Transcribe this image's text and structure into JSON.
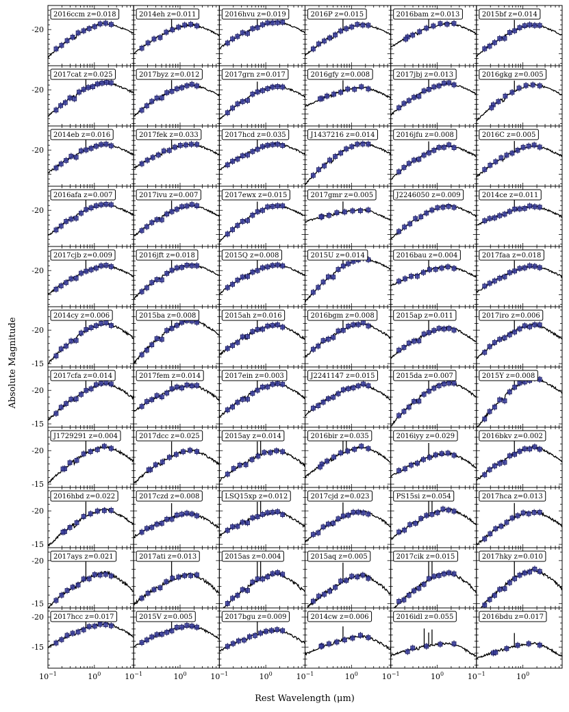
{
  "figure": {
    "xlabel": "Rest Wavelength (μm)",
    "ylabel": "Absolute Magnitude"
  },
  "style": {
    "model_color": "#000000",
    "point_fill": "#3b3fa0",
    "point_edge": "#1a1a5a",
    "frame_color": "#000000"
  },
  "chart_data": {
    "type": "scatter",
    "xscale": "log",
    "yinvert": true,
    "xlim": [
      0.1,
      7
    ],
    "rows": 11,
    "cols": 6,
    "x_ticks": [
      {
        "value": 0.1,
        "base": "10",
        "exp": "−1"
      },
      {
        "value": 1,
        "base": "10",
        "exp": "0"
      }
    ],
    "row_yticks": [
      [
        {
          "value": -20,
          "label": "-20"
        }
      ],
      [
        {
          "value": -20,
          "label": "-20"
        }
      ],
      [
        {
          "value": -20,
          "label": "-20"
        }
      ],
      [
        {
          "value": -20,
          "label": "-20"
        }
      ],
      [
        {
          "value": -20,
          "label": "-20"
        }
      ],
      [
        {
          "value": -20,
          "label": "-20"
        },
        {
          "value": -15,
          "label": "-15"
        }
      ],
      [
        {
          "value": -20,
          "label": "-20"
        },
        {
          "value": -15,
          "label": "-15"
        }
      ],
      [
        {
          "value": -20,
          "label": "-20"
        },
        {
          "value": -15,
          "label": "-15"
        }
      ],
      [
        {
          "value": -20,
          "label": "-20"
        },
        {
          "value": -15,
          "label": "-15"
        }
      ],
      [
        {
          "value": -20,
          "label": "-20"
        },
        {
          "value": -15,
          "label": "-15"
        }
      ],
      [
        {
          "value": -20,
          "label": "-20"
        },
        {
          "value": -15,
          "label": "-15"
        }
      ]
    ],
    "row_ylim": [
      [
        -12.5,
        -25
      ],
      [
        -12.5,
        -25
      ],
      [
        -12.5,
        -25
      ],
      [
        -12.5,
        -25
      ],
      [
        -12.5,
        -25
      ],
      [
        -14.5,
        -23.5
      ],
      [
        -14.5,
        -23.5
      ],
      [
        -14.5,
        -23.5
      ],
      [
        -14.5,
        -23.5
      ],
      [
        -14.5,
        -21.5
      ],
      [
        -11.5,
        -21.5
      ]
    ],
    "panels": [
      {
        "name": "2016ccm z=0.018",
        "peak": -21.3,
        "depth": 7.0,
        "pts": 11,
        "spikes": 0
      },
      {
        "name": "2014eh z=0.011",
        "peak": -21.0,
        "depth": 6.0,
        "pts": 10,
        "spikes": 1
      },
      {
        "name": "2016hvu z=0.019",
        "peak": -21.6,
        "depth": 5.5,
        "pts": 12,
        "spikes": 1
      },
      {
        "name": "2016P z=0.015",
        "peak": -21.1,
        "depth": 6.5,
        "pts": 11,
        "spikes": 1
      },
      {
        "name": "2016bam z=0.013",
        "peak": -21.3,
        "depth": 5.0,
        "pts": 9,
        "spikes": 1
      },
      {
        "name": "2015bf z=0.014",
        "peak": -21.0,
        "depth": 6.5,
        "pts": 12,
        "spikes": 1
      },
      {
        "name": "2017cat z=0.025",
        "peak": -21.5,
        "depth": 7.0,
        "pts": 13,
        "spikes": 1
      },
      {
        "name": "2017byz z=0.012",
        "peak": -21.0,
        "depth": 6.5,
        "pts": 12,
        "spikes": 1
      },
      {
        "name": "2017grn z=0.017",
        "peak": -20.8,
        "depth": 7.0,
        "pts": 12,
        "spikes": 1
      },
      {
        "name": "2016gfy z=0.008",
        "peak": -20.5,
        "depth": 4.0,
        "pts": 9,
        "spikes": 1
      },
      {
        "name": "2017jbj z=0.013",
        "peak": -21.3,
        "depth": 6.5,
        "pts": 12,
        "spikes": 1
      },
      {
        "name": "2016gkg z=0.005",
        "peak": -21.1,
        "depth": 7.5,
        "pts": 9,
        "spikes": 1
      },
      {
        "name": "2014eb z=0.016",
        "peak": -21.2,
        "depth": 6.0,
        "pts": 12,
        "spikes": 1
      },
      {
        "name": "2017fek z=0.033",
        "peak": -21.2,
        "depth": 5.0,
        "pts": 11,
        "spikes": 1
      },
      {
        "name": "2017hcd z=0.035",
        "peak": -21.3,
        "depth": 5.5,
        "pts": 12,
        "spikes": 1
      },
      {
        "name": "J1437216 z=0.014",
        "peak": -21.4,
        "depth": 8.5,
        "pts": 11,
        "spikes": 0
      },
      {
        "name": "2016jfu z=0.008",
        "peak": -20.9,
        "depth": 7.0,
        "pts": 12,
        "spikes": 1
      },
      {
        "name": "2016C z=0.005",
        "peak": -20.9,
        "depth": 6.5,
        "pts": 11,
        "spikes": 1
      },
      {
        "name": "2016afa z=0.007",
        "peak": -21.2,
        "depth": 6.5,
        "pts": 12,
        "spikes": 1
      },
      {
        "name": "2017ivu z=0.007",
        "peak": -21.0,
        "depth": 6.5,
        "pts": 12,
        "spikes": 1
      },
      {
        "name": "2017ewx z=0.015",
        "peak": -21.0,
        "depth": 7.5,
        "pts": 12,
        "spikes": 1
      },
      {
        "name": "2017gmr z=0.005",
        "peak": -20.1,
        "depth": 2.5,
        "pts": 8,
        "spikes": 1
      },
      {
        "name": "J2246050 z=0.009",
        "peak": -21.0,
        "depth": 7.0,
        "pts": 11,
        "spikes": 0
      },
      {
        "name": "2014ce z=0.011",
        "peak": -20.8,
        "depth": 4.0,
        "pts": 12,
        "spikes": 1
      },
      {
        "name": "2017cjb z=0.009",
        "peak": -21.0,
        "depth": 6.0,
        "pts": 12,
        "spikes": 1
      },
      {
        "name": "2016jft z=0.018",
        "peak": -21.2,
        "depth": 7.0,
        "pts": 12,
        "spikes": 1
      },
      {
        "name": "2015Q z=0.008",
        "peak": -21.2,
        "depth": 6.0,
        "pts": 12,
        "spikes": 1
      },
      {
        "name": "2015U z=0.014",
        "peak": -22.5,
        "depth": 9.0,
        "pts": 12,
        "spikes": 1
      },
      {
        "name": "2016bau z=0.004",
        "peak": -20.8,
        "depth": 4.0,
        "pts": 10,
        "spikes": 1
      },
      {
        "name": "2017faa z=0.018",
        "peak": -20.9,
        "depth": 5.5,
        "pts": 12,
        "spikes": 1
      },
      {
        "name": "2014cy z=0.006",
        "peak": -21.0,
        "depth": 6.0,
        "pts": 12,
        "spikes": 1
      },
      {
        "name": "2015ba z=0.008",
        "peak": -21.5,
        "depth": 6.5,
        "pts": 12,
        "spikes": 1
      },
      {
        "name": "2015ah z=0.016",
        "peak": -20.8,
        "depth": 4.5,
        "pts": 12,
        "spikes": 1
      },
      {
        "name": "2016bgm z=0.008",
        "peak": -21.0,
        "depth": 5.0,
        "pts": 12,
        "spikes": 1
      },
      {
        "name": "2015ap z=0.011",
        "peak": -20.4,
        "depth": 4.5,
        "pts": 12,
        "spikes": 1
      },
      {
        "name": "2017iro z=0.006",
        "peak": -20.8,
        "depth": 5.0,
        "pts": 12,
        "spikes": 1
      },
      {
        "name": "2017cfa z=0.014",
        "peak": -21.0,
        "depth": 5.5,
        "pts": 12,
        "spikes": 1
      },
      {
        "name": "2017fem z=0.014",
        "peak": -20.8,
        "depth": 4.0,
        "pts": 12,
        "spikes": 1
      },
      {
        "name": "2017ein z=0.003",
        "peak": -21.0,
        "depth": 5.0,
        "pts": 12,
        "spikes": 1
      },
      {
        "name": "J2241147 z=0.015",
        "peak": -20.8,
        "depth": 4.5,
        "pts": 12,
        "spikes": 0
      },
      {
        "name": "2015da z=0.007",
        "peak": -21.2,
        "depth": 6.5,
        "pts": 12,
        "spikes": 1
      },
      {
        "name": "2015Y z=0.008",
        "peak": -21.8,
        "depth": 7.5,
        "pts": 12,
        "spikes": 1
      },
      {
        "name": "J1729291 z=0.004",
        "peak": -20.6,
        "depth": 5.5,
        "pts": 9,
        "spikes": 1
      },
      {
        "name": "2017dcc z=0.025",
        "peak": -20.1,
        "depth": 5.0,
        "pts": 9,
        "spikes": 1
      },
      {
        "name": "2015ay z=0.014",
        "peak": -20.0,
        "depth": 4.5,
        "pts": 10,
        "spikes": 2
      },
      {
        "name": "2016bir z=0.035",
        "peak": -20.5,
        "depth": 4.5,
        "pts": 9,
        "spikes": 2
      },
      {
        "name": "2016iyy z=0.029",
        "peak": -19.6,
        "depth": 3.5,
        "pts": 10,
        "spikes": 1
      },
      {
        "name": "2016bkv z=0.002",
        "peak": -20.5,
        "depth": 5.0,
        "pts": 12,
        "spikes": 1
      },
      {
        "name": "2016hbd z=0.022",
        "peak": -20.2,
        "depth": 5.5,
        "pts": 9,
        "spikes": 1
      },
      {
        "name": "2017czd z=0.008",
        "peak": -19.6,
        "depth": 3.5,
        "pts": 12,
        "spikes": 1
      },
      {
        "name": "LSQ15xp z=0.012",
        "peak": -19.8,
        "depth": 3.5,
        "pts": 12,
        "spikes": 2
      },
      {
        "name": "2017cjd z=0.023",
        "peak": -19.9,
        "depth": 4.5,
        "pts": 12,
        "spikes": 1
      },
      {
        "name": "PS15si z=0.054",
        "peak": -20.2,
        "depth": 4.5,
        "pts": 11,
        "spikes": 2
      },
      {
        "name": "2017hca z=0.013",
        "peak": -19.9,
        "depth": 5.0,
        "pts": 11,
        "spikes": 1
      },
      {
        "name": "2017ays z=0.021",
        "peak": -18.6,
        "depth": 4.0,
        "pts": 11,
        "spikes": 1
      },
      {
        "name": "2017ati z=0.013",
        "peak": -18.4,
        "depth": 3.5,
        "pts": 10,
        "spikes": 1
      },
      {
        "name": "2015as z=0.004",
        "peak": -18.5,
        "depth": 4.5,
        "pts": 12,
        "spikes": 2
      },
      {
        "name": "2015aq z=0.005",
        "peak": -18.3,
        "depth": 4.0,
        "pts": 11,
        "spikes": 1
      },
      {
        "name": "2017cik z=0.015",
        "peak": -18.6,
        "depth": 4.5,
        "pts": 12,
        "spikes": 2
      },
      {
        "name": "2017hky z=0.010",
        "peak": -18.9,
        "depth": 5.0,
        "pts": 12,
        "spikes": 1
      },
      {
        "name": "2017hcc z=0.017",
        "peak": -18.9,
        "depth": 4.0,
        "pts": 11,
        "spikes": 1
      },
      {
        "name": "2015V z=0.005",
        "peak": -18.5,
        "depth": 3.5,
        "pts": 12,
        "spikes": 1
      },
      {
        "name": "2017bgu z=0.009",
        "peak": -17.8,
        "depth": 3.5,
        "pts": 11,
        "spikes": 1
      },
      {
        "name": "2014cw z=0.006",
        "peak": -16.8,
        "depth": 3.0,
        "pts": 8,
        "spikes": 1
      },
      {
        "name": "2016idl z=0.055",
        "peak": -15.6,
        "depth": 2.0,
        "pts": 5,
        "spikes": 3
      },
      {
        "name": "2016bdu z=0.017",
        "peak": -15.6,
        "depth": 2.5,
        "pts": 6,
        "spikes": 1
      }
    ]
  }
}
